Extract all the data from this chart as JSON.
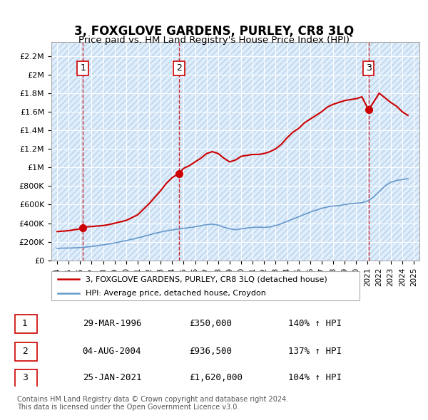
{
  "title": "3, FOXGLOVE GARDENS, PURLEY, CR8 3LQ",
  "subtitle": "Price paid vs. HM Land Registry's House Price Index (HPI)",
  "xlabel": "",
  "ylabel": "",
  "xlim": [
    1993.5,
    2025.5
  ],
  "ylim": [
    0,
    2350000
  ],
  "yticks": [
    0,
    200000,
    400000,
    600000,
    800000,
    1000000,
    1200000,
    1400000,
    1600000,
    1800000,
    2000000,
    2200000
  ],
  "ytick_labels": [
    "£0",
    "£200K",
    "£400K",
    "£600K",
    "£800K",
    "£1M",
    "£1.2M",
    "£1.4M",
    "£1.6M",
    "£1.8M",
    "£2M",
    "£2.2M"
  ],
  "xticks": [
    1994,
    1995,
    1996,
    1997,
    1998,
    1999,
    2000,
    2001,
    2002,
    2003,
    2004,
    2005,
    2006,
    2007,
    2008,
    2009,
    2010,
    2011,
    2012,
    2013,
    2014,
    2015,
    2016,
    2017,
    2018,
    2019,
    2020,
    2021,
    2022,
    2023,
    2024,
    2025
  ],
  "sale_dates": [
    1996.24,
    2004.59,
    2021.07
  ],
  "sale_prices": [
    350000,
    936500,
    1620000
  ],
  "sale_labels": [
    "1",
    "2",
    "3"
  ],
  "property_line_color": "#cc0000",
  "hpi_line_color": "#6699cc",
  "hpi_line_color2": "#aaccee",
  "background_color": "#ddeeff",
  "hatch_color": "#bbccdd",
  "legend_label1": "3, FOXGLOVE GARDENS, PURLEY, CR8 3LQ (detached house)",
  "legend_label2": "HPI: Average price, detached house, Croydon",
  "table_rows": [
    [
      "1",
      "29-MAR-1996",
      "£350,000",
      "140% ↑ HPI"
    ],
    [
      "2",
      "04-AUG-2004",
      "£936,500",
      "137% ↑ HPI"
    ],
    [
      "3",
      "25-JAN-2021",
      "£1,620,000",
      "104% ↑ HPI"
    ]
  ],
  "footer": "Contains HM Land Registry data © Crown copyright and database right 2024.\nThis data is licensed under the Open Government Licence v3.0.",
  "property_x": [
    1994.0,
    1994.5,
    1995.0,
    1995.5,
    1996.0,
    1996.24,
    1996.5,
    1997.0,
    1997.5,
    1998.0,
    1998.5,
    1999.0,
    1999.5,
    2000.0,
    2000.5,
    2001.0,
    2001.5,
    2002.0,
    2002.5,
    2003.0,
    2003.5,
    2004.0,
    2004.59,
    2005.0,
    2005.5,
    2006.0,
    2006.5,
    2007.0,
    2007.5,
    2008.0,
    2008.5,
    2009.0,
    2009.5,
    2010.0,
    2010.5,
    2011.0,
    2011.5,
    2012.0,
    2012.5,
    2013.0,
    2013.5,
    2014.0,
    2014.5,
    2015.0,
    2015.5,
    2016.0,
    2016.5,
    2017.0,
    2017.5,
    2018.0,
    2018.5,
    2019.0,
    2019.5,
    2020.0,
    2020.5,
    2021.07,
    2021.5,
    2022.0,
    2022.5,
    2023.0,
    2023.5,
    2024.0,
    2024.5
  ],
  "property_y": [
    310000,
    315000,
    320000,
    330000,
    340000,
    350000,
    360000,
    365000,
    370000,
    375000,
    385000,
    400000,
    415000,
    430000,
    460000,
    490000,
    550000,
    610000,
    680000,
    750000,
    830000,
    890000,
    936500,
    990000,
    1020000,
    1060000,
    1100000,
    1150000,
    1170000,
    1150000,
    1100000,
    1060000,
    1080000,
    1120000,
    1130000,
    1140000,
    1140000,
    1150000,
    1170000,
    1200000,
    1250000,
    1320000,
    1380000,
    1420000,
    1480000,
    1520000,
    1560000,
    1600000,
    1650000,
    1680000,
    1700000,
    1720000,
    1730000,
    1740000,
    1760000,
    1620000,
    1700000,
    1800000,
    1750000,
    1700000,
    1660000,
    1600000,
    1560000
  ],
  "hpi_x": [
    1994.0,
    1994.5,
    1995.0,
    1995.5,
    1996.0,
    1996.5,
    1997.0,
    1997.5,
    1998.0,
    1998.5,
    1999.0,
    1999.5,
    2000.0,
    2000.5,
    2001.0,
    2001.5,
    2002.0,
    2002.5,
    2003.0,
    2003.5,
    2004.0,
    2004.5,
    2005.0,
    2005.5,
    2006.0,
    2006.5,
    2007.0,
    2007.5,
    2008.0,
    2008.5,
    2009.0,
    2009.5,
    2010.0,
    2010.5,
    2011.0,
    2011.5,
    2012.0,
    2012.5,
    2013.0,
    2013.5,
    2014.0,
    2014.5,
    2015.0,
    2015.5,
    2016.0,
    2016.5,
    2017.0,
    2017.5,
    2018.0,
    2018.5,
    2019.0,
    2019.5,
    2020.0,
    2020.5,
    2021.0,
    2021.5,
    2022.0,
    2022.5,
    2023.0,
    2023.5,
    2024.0,
    2024.5
  ],
  "hpi_y": [
    130000,
    132000,
    133000,
    135000,
    138000,
    143000,
    150000,
    158000,
    167000,
    177000,
    188000,
    200000,
    213000,
    227000,
    242000,
    258000,
    274000,
    291000,
    305000,
    318000,
    328000,
    337000,
    345000,
    353000,
    362000,
    373000,
    385000,
    390000,
    380000,
    358000,
    340000,
    330000,
    340000,
    348000,
    355000,
    358000,
    355000,
    360000,
    375000,
    395000,
    420000,
    445000,
    470000,
    495000,
    520000,
    540000,
    560000,
    575000,
    585000,
    590000,
    600000,
    610000,
    615000,
    620000,
    640000,
    680000,
    740000,
    800000,
    840000,
    860000,
    870000,
    880000
  ]
}
